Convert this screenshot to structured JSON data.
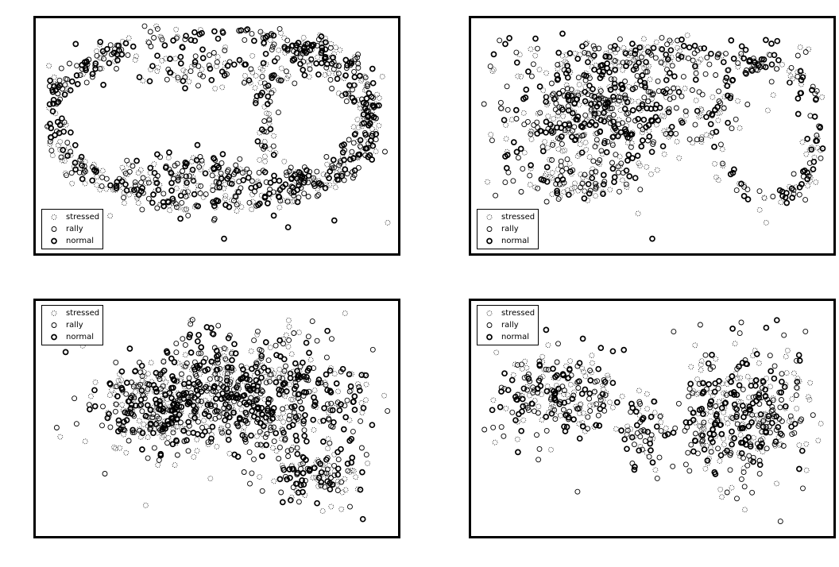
{
  "chart_data": [
    {
      "type": "scatter",
      "xlim": [
        0,
        100
      ],
      "ylim": [
        0,
        100
      ],
      "grid": false,
      "axes_ticks": false,
      "legend_placement": "lower-left",
      "legend": [
        "stressed",
        "rally",
        "normal"
      ],
      "shape": "ring-with-hole",
      "clusters": [
        {
          "kind": "ring",
          "cx": 48,
          "cy": 57,
          "rx": 44,
          "ry": 38,
          "width": 6,
          "n": 520
        },
        {
          "kind": "ring",
          "cx": 78,
          "cy": 60,
          "rx": 15,
          "ry": 30,
          "width": 4,
          "n": 160
        },
        {
          "kind": "blob",
          "cx": 44,
          "cy": 32,
          "rx": 30,
          "ry": 10,
          "n": 180
        },
        {
          "kind": "blob",
          "cx": 50,
          "cy": 80,
          "rx": 38,
          "ry": 8,
          "n": 120
        },
        {
          "kind": "outliers",
          "points": [
            [
              5,
              64
            ],
            [
              8,
              47
            ],
            [
              52,
              5
            ],
            [
              20,
              15
            ],
            [
              70,
              10
            ],
            [
              98,
              12
            ],
            [
              83,
              13
            ]
          ]
        }
      ],
      "series": [
        {
          "name": "stressed",
          "marker": "dotted-circle",
          "share": 0.34
        },
        {
          "name": "rally",
          "marker": "circle",
          "share": 0.33
        },
        {
          "name": "normal",
          "marker": "filled-circle",
          "share": 0.33
        }
      ]
    },
    {
      "type": "scatter",
      "xlim": [
        0,
        100
      ],
      "ylim": [
        0,
        100
      ],
      "grid": false,
      "axes_ticks": false,
      "legend_placement": "lower-left",
      "legend": [
        "stressed",
        "rally",
        "normal"
      ],
      "shape": "dense-core-with-ring",
      "clusters": [
        {
          "kind": "blob",
          "cx": 38,
          "cy": 60,
          "rx": 32,
          "ry": 24,
          "n": 520
        },
        {
          "kind": "blob",
          "cx": 48,
          "cy": 85,
          "rx": 35,
          "ry": 8,
          "n": 160
        },
        {
          "kind": "ring",
          "cx": 82,
          "cy": 52,
          "rx": 15,
          "ry": 30,
          "width": 4,
          "n": 170
        },
        {
          "kind": "blob",
          "cx": 28,
          "cy": 30,
          "rx": 20,
          "ry": 10,
          "n": 90
        },
        {
          "kind": "outliers",
          "points": [
            [
              50,
              5
            ],
            [
              82,
              12
            ],
            [
              93,
              22
            ],
            [
              5,
              48
            ],
            [
              12,
              82
            ],
            [
              46,
              16
            ]
          ]
        }
      ],
      "series": [
        {
          "name": "stressed",
          "marker": "dotted-circle",
          "share": 0.34
        },
        {
          "name": "rally",
          "marker": "circle",
          "share": 0.33
        },
        {
          "name": "normal",
          "marker": "filled-circle",
          "share": 0.33
        }
      ]
    },
    {
      "type": "scatter",
      "xlim": [
        0,
        100
      ],
      "ylim": [
        0,
        100
      ],
      "grid": false,
      "axes_ticks": false,
      "legend_placement": "upper-left",
      "legend": [
        "stressed",
        "rally",
        "normal"
      ],
      "shape": "filled-mass",
      "clusters": [
        {
          "kind": "blob",
          "cx": 56,
          "cy": 60,
          "rx": 36,
          "ry": 26,
          "n": 760
        },
        {
          "kind": "blob",
          "cx": 32,
          "cy": 52,
          "rx": 14,
          "ry": 16,
          "n": 170
        },
        {
          "kind": "blob",
          "cx": 78,
          "cy": 25,
          "rx": 14,
          "ry": 12,
          "n": 120
        },
        {
          "kind": "outliers",
          "points": [
            [
              5,
              46
            ],
            [
              30,
              12
            ],
            [
              86,
              96
            ],
            [
              91,
              6
            ],
            [
              97,
              60
            ],
            [
              13,
              40
            ]
          ]
        }
      ],
      "series": [
        {
          "name": "stressed",
          "marker": "dotted-circle",
          "share": 0.34
        },
        {
          "name": "rally",
          "marker": "circle",
          "share": 0.33
        },
        {
          "name": "normal",
          "marker": "filled-circle",
          "share": 0.33
        }
      ]
    },
    {
      "type": "scatter",
      "xlim": [
        0,
        100
      ],
      "ylim": [
        0,
        100
      ],
      "grid": false,
      "axes_ticks": false,
      "legend_placement": "upper-left",
      "legend": [
        "stressed",
        "rally",
        "normal"
      ],
      "shape": "two-lobes",
      "clusters": [
        {
          "kind": "blob",
          "cx": 24,
          "cy": 62,
          "rx": 18,
          "ry": 20,
          "n": 230
        },
        {
          "kind": "blob",
          "cx": 47,
          "cy": 44,
          "rx": 6,
          "ry": 18,
          "n": 60
        },
        {
          "kind": "blob",
          "cx": 78,
          "cy": 52,
          "rx": 17,
          "ry": 30,
          "n": 330
        },
        {
          "kind": "blob",
          "cx": 64,
          "cy": 48,
          "rx": 6,
          "ry": 18,
          "n": 50
        },
        {
          "kind": "outliers",
          "points": [
            [
              18,
              32
            ],
            [
              29,
              18
            ],
            [
              86,
              5
            ],
            [
              75,
              92
            ],
            [
              56,
              88
            ],
            [
              62,
              82
            ],
            [
              42,
              80
            ]
          ]
        }
      ],
      "series": [
        {
          "name": "stressed",
          "marker": "dotted-circle",
          "share": 0.34
        },
        {
          "name": "rally",
          "marker": "circle",
          "share": 0.33
        },
        {
          "name": "normal",
          "marker": "filled-circle",
          "share": 0.33
        }
      ]
    }
  ]
}
